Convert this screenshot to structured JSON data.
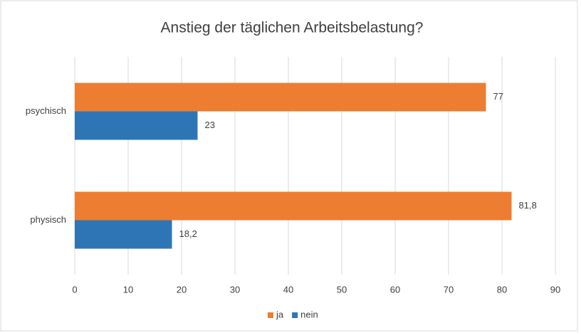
{
  "chart_data": {
    "type": "hbar",
    "title": "Anstieg der täglichen Arbeitsbelastung?",
    "categories": [
      "psychisch",
      "physisch"
    ],
    "series": [
      {
        "name": "ja",
        "color": "#ed7d31",
        "values": [
          77,
          81.8
        ],
        "value_labels": [
          "77",
          "81,8"
        ]
      },
      {
        "name": "nein",
        "color": "#2e75b6",
        "values": [
          23,
          18.2
        ],
        "value_labels": [
          "23",
          "18,2"
        ]
      }
    ],
    "xlim": [
      0,
      90
    ],
    "xticks": [
      0,
      10,
      20,
      30,
      40,
      50,
      60,
      70,
      80,
      90
    ],
    "grid": true,
    "legend": "bottom"
  }
}
